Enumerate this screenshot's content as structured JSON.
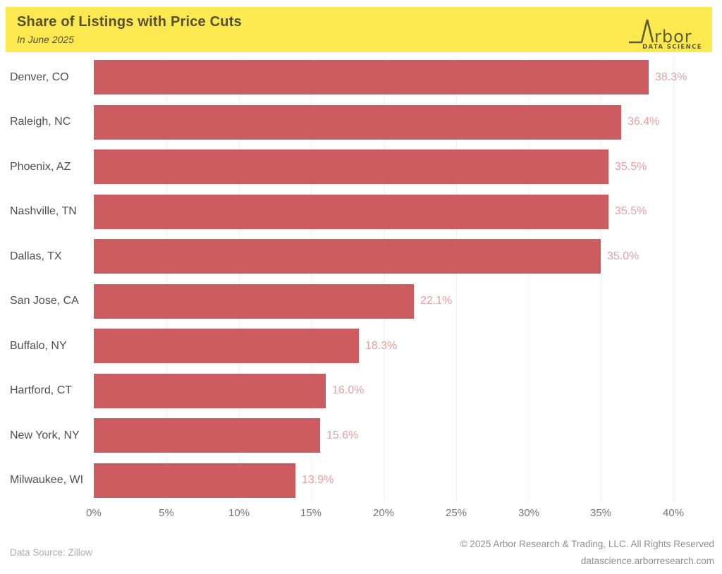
{
  "header": {
    "title": "Share of Listings with Price Cuts",
    "subtitle": "In June 2025",
    "background_color": "#fce84f",
    "text_color": "#53502f",
    "logo": {
      "brand_text": "rbor",
      "tagline": "DATA SCIENCE",
      "color": "#5f5c33"
    }
  },
  "chart_data": {
    "type": "bar",
    "orientation": "horizontal",
    "title": "Share of Listings with Price Cuts",
    "subtitle": "In June 2025",
    "categories": [
      "Denver, CO",
      "Raleigh, NC",
      "Phoenix, AZ",
      "Nashville, TN",
      "Dallas, TX",
      "San Jose, CA",
      "Buffalo, NY",
      "Hartford, CT",
      "New York, NY",
      "Milwaukee, WI"
    ],
    "values": [
      38.3,
      36.4,
      35.5,
      35.5,
      35.0,
      22.1,
      18.3,
      16.0,
      15.6,
      13.9
    ],
    "value_labels": [
      "38.3%",
      "36.4%",
      "35.5%",
      "35.5%",
      "35.0%",
      "22.1%",
      "18.3%",
      "16.0%",
      "15.6%",
      "13.9%"
    ],
    "xlabel": "",
    "ylabel": "",
    "xlim": [
      0,
      40
    ],
    "x_tick_values": [
      0,
      5,
      10,
      15,
      20,
      25,
      30,
      35,
      40
    ],
    "x_tick_labels": [
      "0%",
      "5%",
      "10%",
      "15%",
      "20%",
      "25%",
      "30%",
      "35%",
      "40%"
    ],
    "bar_color": "#cc5c60",
    "value_label_color": "#e4a0a2",
    "grid": "vertical-light",
    "legend": "none"
  },
  "footer": {
    "source": "Data Source: Zillow",
    "copyright": "© 2025 Arbor Research & Trading, LLC. All Rights Reserved",
    "website": "datascience.arborresearch.com"
  }
}
